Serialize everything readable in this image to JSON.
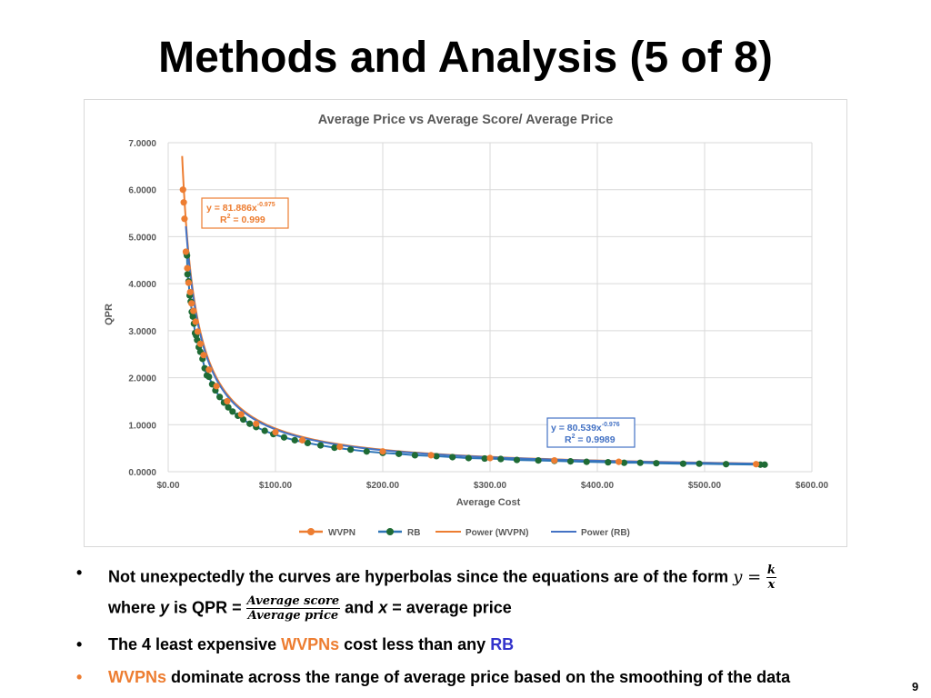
{
  "slide": {
    "title": "Methods and Analysis (5 of 8)",
    "page_number": "9"
  },
  "chart_data": {
    "type": "scatter",
    "title": "Average Price vs Average Score/ Average Price",
    "xlabel": "Average Cost",
    "ylabel": "QPR",
    "xlim": [
      0,
      600
    ],
    "ylim": [
      0,
      7
    ],
    "x_tick_labels": [
      "$0.00",
      "$100.00",
      "$200.00",
      "$300.00",
      "$400.00",
      "$500.00",
      "$600.00"
    ],
    "y_tick_labels": [
      "0.0000",
      "1.0000",
      "2.0000",
      "3.0000",
      "4.0000",
      "5.0000",
      "6.0000",
      "7.0000"
    ],
    "grid": true,
    "legend_position": "bottom",
    "legend": [
      "WVPN",
      "RB",
      "Power (WVPN)",
      "Power (RB)"
    ],
    "colors": {
      "wvpn": "#ED7D31",
      "rb": "#1F6B35",
      "rb_edge": "#2E75B6",
      "power_rb": "#4472C4"
    },
    "series": [
      {
        "name": "WVPN",
        "x": [
          13.8,
          14.5,
          15.2,
          16.5,
          17.8,
          19.0,
          20.5,
          21.8,
          23.5,
          25.5,
          27.5,
          30.0,
          33.0,
          38.0,
          45.0,
          55.0,
          68.0,
          82.0,
          100.0,
          125.0,
          160.0,
          200.0,
          245.0,
          300.0,
          360.0,
          420.0,
          548.0
        ],
        "y": [
          6.0,
          5.73,
          5.38,
          4.68,
          4.33,
          4.02,
          3.82,
          3.58,
          3.42,
          3.19,
          2.98,
          2.72,
          2.48,
          2.17,
          1.82,
          1.5,
          1.22,
          1.02,
          0.84,
          0.67,
          0.53,
          0.43,
          0.35,
          0.29,
          0.24,
          0.21,
          0.16
        ]
      },
      {
        "name": "RB",
        "x": [
          17.0,
          17.5,
          18.0,
          19.0,
          20.0,
          21.0,
          22.0,
          23.0,
          24.0,
          25.0,
          26.0,
          27.0,
          28.5,
          30.0,
          32.0,
          34.0,
          36.0,
          38.0,
          41.0,
          44.0,
          48.0,
          52.0,
          56.0,
          60.0,
          65.0,
          70.0,
          76.0,
          82.0,
          90.0,
          98.0,
          108.0,
          118.0,
          130.0,
          142.0,
          155.0,
          170.0,
          185.0,
          200.0,
          215.0,
          230.0,
          250.0,
          265.0,
          280.0,
          295.0,
          310.0,
          325.0,
          345.0,
          360.0,
          375.0,
          390.0,
          410.0,
          425.0,
          440.0,
          455.0,
          480.0,
          495.0,
          520.0,
          552.0,
          556.0
        ],
        "y": [
          4.65,
          4.6,
          4.2,
          4.05,
          3.75,
          3.62,
          3.4,
          3.3,
          3.15,
          2.95,
          2.9,
          2.8,
          2.65,
          2.55,
          2.4,
          2.2,
          2.05,
          2.02,
          1.86,
          1.73,
          1.59,
          1.47,
          1.37,
          1.28,
          1.19,
          1.11,
          1.02,
          0.95,
          0.87,
          0.8,
          0.73,
          0.67,
          0.61,
          0.56,
          0.51,
          0.47,
          0.43,
          0.4,
          0.38,
          0.35,
          0.33,
          0.31,
          0.29,
          0.28,
          0.27,
          0.25,
          0.24,
          0.23,
          0.22,
          0.21,
          0.2,
          0.19,
          0.19,
          0.18,
          0.17,
          0.17,
          0.16,
          0.15,
          0.15
        ]
      }
    ],
    "trendlines": [
      {
        "name": "Power (WVPN)",
        "coef": 81.886,
        "exp": -0.975,
        "x_range": [
          13.0,
          552.0
        ],
        "equation": "y = 81.886x",
        "exponent_label": "-0.975",
        "r2_prefix": "R",
        "r2_sup": "2",
        "r2_value": " = 0.999"
      },
      {
        "name": "Power (RB)",
        "coef": 80.539,
        "exp": -0.976,
        "x_range": [
          16.5,
          556.0
        ],
        "equation": "y = 80.539x",
        "exponent_label": "-0.976",
        "r2_prefix": "R",
        "r2_sup": "2",
        "r2_value": " = 0.9989"
      }
    ]
  },
  "bullets": {
    "b1": {
      "marker": "•",
      "text": "Not unexpectedly the curves are hyperbolas since the equations are of the form ",
      "formula_lhs": "y",
      "formula_eq": " = ",
      "frac_num": "k",
      "frac_den": "x",
      "line2_prefix": "where ",
      "line2_y": "y",
      "line2_is": " is QPR = ",
      "qpr_num": "Average score",
      "qpr_den": "Average price",
      "line2_and": " and ",
      "line2_x": "x",
      "line2_tail": " = average price"
    },
    "b2": {
      "marker": "•",
      "prefix": "The 4 least expensive ",
      "wvpns": "WVPNs",
      "middle": " cost less than any ",
      "rb": "RB"
    },
    "b3": {
      "marker": "•",
      "wvpns": "WVPNs",
      "rest": " dominate across the range of average price based on the smoothing of the data"
    }
  }
}
